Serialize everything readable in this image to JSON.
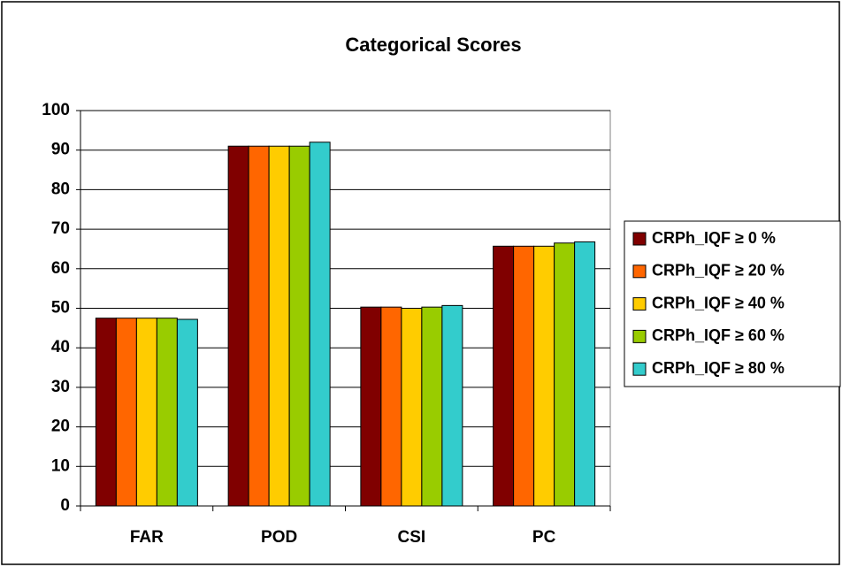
{
  "chart_data": {
    "type": "bar",
    "title": "Categorical Scores",
    "categories": [
      "FAR",
      "POD",
      "CSI",
      "PC"
    ],
    "series": [
      {
        "name": "CRPh_IQF ≥ 0 %",
        "color": "#800000",
        "values": [
          47.5,
          91,
          50.3,
          65.7
        ]
      },
      {
        "name": "CRPh_IQF ≥ 20 %",
        "color": "#ff6600",
        "values": [
          47.5,
          91,
          50.3,
          65.7
        ]
      },
      {
        "name": "CRPh_IQF ≥ 40 %",
        "color": "#ffcc00",
        "values": [
          47.5,
          91,
          50,
          65.7
        ]
      },
      {
        "name": "CRPh_IQF ≥ 60 %",
        "color": "#99cc00",
        "values": [
          47.5,
          91,
          50.3,
          66.5
        ]
      },
      {
        "name": "CRPh_IQF ≥ 80 %",
        "color": "#33cccc",
        "values": [
          47.2,
          92,
          50.7,
          66.8
        ]
      }
    ],
    "ylim": [
      0,
      100
    ],
    "yticks": [
      0,
      10,
      20,
      30,
      40,
      50,
      60,
      70,
      80,
      90,
      100
    ],
    "grid": true,
    "legend": "right"
  }
}
